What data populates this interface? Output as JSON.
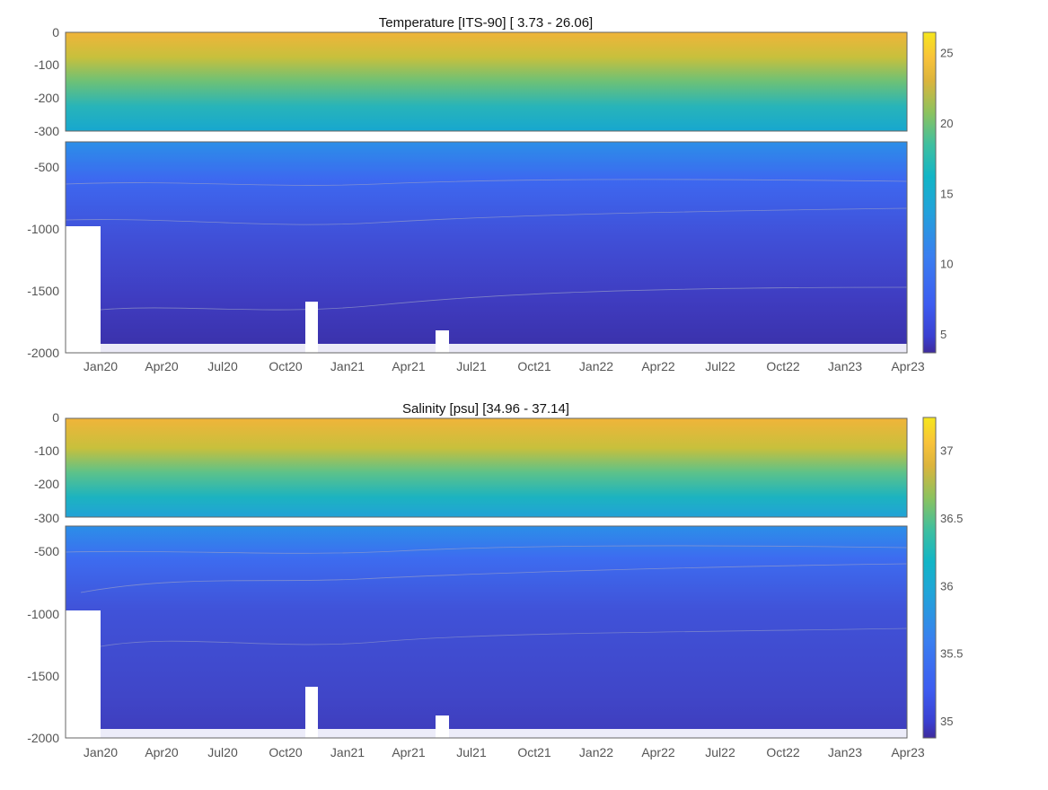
{
  "chart_data": [
    {
      "type": "heatmap",
      "title": "Temperature [ITS-90]   [ 3.73 - 26.06]",
      "variable": "temperature",
      "value_range": [
        3.73,
        26.06
      ],
      "x_ticks": [
        "Jan20",
        "Apr20",
        "Jul20",
        "Oct20",
        "Jan21",
        "Apr21",
        "Jul21",
        "Oct21",
        "Jan22",
        "Apr22",
        "Jul22",
        "Oct22",
        "Jan23",
        "Apr23"
      ],
      "upper_panel": {
        "ylim": [
          -300,
          0
        ],
        "y_ticks": [
          "0",
          "-100",
          "-200",
          "-300"
        ]
      },
      "lower_panel": {
        "ylim": [
          -2000,
          -300
        ],
        "y_ticks": [
          "-500",
          "-1000",
          "-1500",
          "-2000"
        ]
      },
      "colorbar": {
        "ticks": [
          "5",
          "10",
          "15",
          "20",
          "25"
        ],
        "tick_values": [
          5,
          10,
          15,
          20,
          25
        ],
        "range": [
          3.73,
          26.5
        ]
      },
      "gradient": [
        [
          0,
          "#3e2b9c"
        ],
        [
          0.05,
          "#3a3fd0"
        ],
        [
          0.15,
          "#3d5cf0"
        ],
        [
          0.3,
          "#3a7ef0"
        ],
        [
          0.45,
          "#21a4d9"
        ],
        [
          0.55,
          "#12b5c6"
        ],
        [
          0.65,
          "#3fbf9f"
        ],
        [
          0.75,
          "#8cc25e"
        ],
        [
          0.85,
          "#dcb43c"
        ],
        [
          0.92,
          "#f8c23a"
        ],
        [
          1,
          "#f6e61c"
        ]
      ],
      "upper_bands": [
        [
          0,
          "#f0b43a"
        ],
        [
          0.25,
          "#c8c03c"
        ],
        [
          0.5,
          "#6cc177"
        ],
        [
          0.75,
          "#28b4b9"
        ],
        [
          1,
          "#17a7cf"
        ]
      ],
      "lower_bands": [
        [
          0,
          "#2b8fe8"
        ],
        [
          0.18,
          "#3d68f0"
        ],
        [
          0.45,
          "#4050d8"
        ],
        [
          0.75,
          "#3f3cc0"
        ],
        [
          1,
          "#3a30a8"
        ]
      ]
    },
    {
      "type": "heatmap",
      "title": "Salinity [psu]   [34.96 - 37.14]",
      "variable": "salinity",
      "value_range": [
        34.96,
        37.14
      ],
      "x_ticks": [
        "Jan20",
        "Apr20",
        "Jul20",
        "Oct20",
        "Jan21",
        "Apr21",
        "Jul21",
        "Oct21",
        "Jan22",
        "Apr22",
        "Jul22",
        "Oct22",
        "Jan23",
        "Apr23"
      ],
      "upper_panel": {
        "ylim": [
          -300,
          0
        ],
        "y_ticks": [
          "0",
          "-100",
          "-200",
          "-300"
        ]
      },
      "lower_panel": {
        "ylim": [
          -2000,
          -300
        ],
        "y_ticks": [
          "-500",
          "-1000",
          "-1500",
          "-2000"
        ]
      },
      "colorbar": {
        "ticks": [
          "35",
          "35.5",
          "36",
          "36.5",
          "37"
        ],
        "tick_values": [
          35,
          35.5,
          36,
          36.5,
          37
        ],
        "range": [
          34.88,
          37.25
        ]
      },
      "gradient": [
        [
          0,
          "#3e2b9c"
        ],
        [
          0.05,
          "#3a3fd0"
        ],
        [
          0.15,
          "#3d5cf0"
        ],
        [
          0.3,
          "#3a7ef0"
        ],
        [
          0.45,
          "#21a4d9"
        ],
        [
          0.55,
          "#12b5c6"
        ],
        [
          0.65,
          "#3fbf9f"
        ],
        [
          0.75,
          "#8cc25e"
        ],
        [
          0.85,
          "#dcb43c"
        ],
        [
          0.92,
          "#f8c23a"
        ],
        [
          1,
          "#f6e61c"
        ]
      ],
      "upper_bands": [
        [
          0,
          "#f0b43a"
        ],
        [
          0.3,
          "#c8c03c"
        ],
        [
          0.55,
          "#5cc28a"
        ],
        [
          0.8,
          "#1cb3c0"
        ],
        [
          1,
          "#22a2d6"
        ]
      ],
      "lower_bands": [
        [
          0,
          "#2b8fe8"
        ],
        [
          0.15,
          "#3d6cf0"
        ],
        [
          0.4,
          "#4052d8"
        ],
        [
          0.8,
          "#4046c8"
        ],
        [
          1,
          "#3e3cbc"
        ]
      ]
    }
  ]
}
